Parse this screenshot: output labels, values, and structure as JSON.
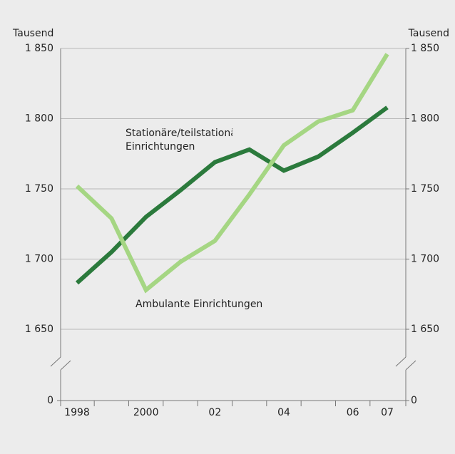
{
  "chart_data": {
    "type": "line",
    "y_axis_label": "Tausend",
    "y2_axis_label": "Tausend",
    "categories": [
      "1998",
      null,
      "2000",
      null,
      "02",
      null,
      "04",
      null,
      "06",
      "07"
    ],
    "series": [
      {
        "name": "Stationäre/teilstationäre Einrichtungen",
        "color": "#2b7a3c",
        "values": [
          1683,
          1705,
          1730,
          1749,
          1769,
          1778,
          1763,
          1773,
          1790,
          1808
        ]
      },
      {
        "name": "Ambulante Einrichtungen",
        "color": "#a5d683",
        "values": [
          1752,
          1729,
          1678,
          1698,
          1713,
          1746,
          1781,
          1798,
          1806,
          1846
        ]
      }
    ],
    "ylim": [
      1650,
      1850
    ],
    "yticks": [
      0,
      {
        "value": 1650,
        "label": "1 650"
      },
      {
        "value": 1700,
        "label": "1 700"
      },
      {
        "value": 1750,
        "label": "1 750"
      },
      {
        "value": 1800,
        "label": "1 800"
      },
      {
        "value": 1850,
        "label": "1 850"
      }
    ],
    "y2lim": [
      1650,
      1850
    ],
    "y2ticks": [
      0,
      {
        "value": 1650,
        "label": "1 650"
      },
      {
        "value": 1700,
        "label": "1 700"
      },
      {
        "value": 1750,
        "label": "1 750"
      },
      {
        "value": 1800,
        "label": "1 800"
      },
      {
        "value": 1850,
        "label": "1 850"
      }
    ],
    "grid": true
  }
}
